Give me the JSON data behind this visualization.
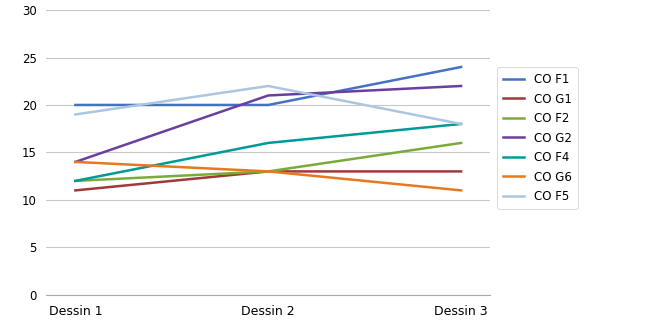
{
  "series": [
    {
      "label": "CO F1",
      "values": [
        20,
        20,
        24
      ],
      "color": "#4472C4",
      "linewidth": 1.8
    },
    {
      "label": "CO G1",
      "values": [
        11,
        13,
        13
      ],
      "color": "#9E3A3A",
      "linewidth": 1.8
    },
    {
      "label": "CO F2",
      "values": [
        12,
        13,
        16
      ],
      "color": "#7AAB3A",
      "linewidth": 1.8
    },
    {
      "label": "CO G2",
      "values": [
        14,
        21,
        22
      ],
      "color": "#6A3FA0",
      "linewidth": 1.8
    },
    {
      "label": "CO F4",
      "values": [
        12,
        16,
        18
      ],
      "color": "#009999",
      "linewidth": 1.8
    },
    {
      "label": "CO G6",
      "values": [
        14,
        13,
        11
      ],
      "color": "#E87820",
      "linewidth": 1.8
    },
    {
      "label": "CO F5",
      "values": [
        19,
        22,
        18
      ],
      "color": "#ADC6E0",
      "linewidth": 1.8
    }
  ],
  "x_labels": [
    "Dessin 1",
    "Dessin 2",
    "Dessin 3"
  ],
  "ylim": [
    0,
    30
  ],
  "yticks": [
    0,
    5,
    10,
    15,
    20,
    25,
    30
  ],
  "grid_color": "#C8C8C8",
  "background_color": "#FFFFFF"
}
